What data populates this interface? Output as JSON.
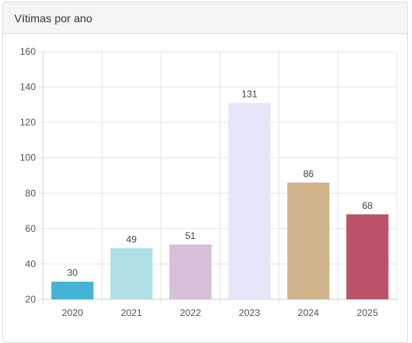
{
  "panel": {
    "title": "Vítimas por ano"
  },
  "chart_data": {
    "type": "bar",
    "title": "Vítimas por ano",
    "categories": [
      "2020",
      "2021",
      "2022",
      "2023",
      "2024",
      "2025"
    ],
    "values": [
      30,
      49,
      51,
      131,
      86,
      68
    ],
    "colors": [
      "#44b3d5",
      "#b0dfe6",
      "#d8bfd8",
      "#e6e6fa",
      "#d2b48c",
      "#bc5168"
    ],
    "ylim": [
      20,
      160
    ],
    "yticks": [
      20,
      40,
      60,
      80,
      100,
      120,
      140,
      160
    ],
    "xlabel": "",
    "ylabel": "",
    "grid": true,
    "legend": "none"
  }
}
